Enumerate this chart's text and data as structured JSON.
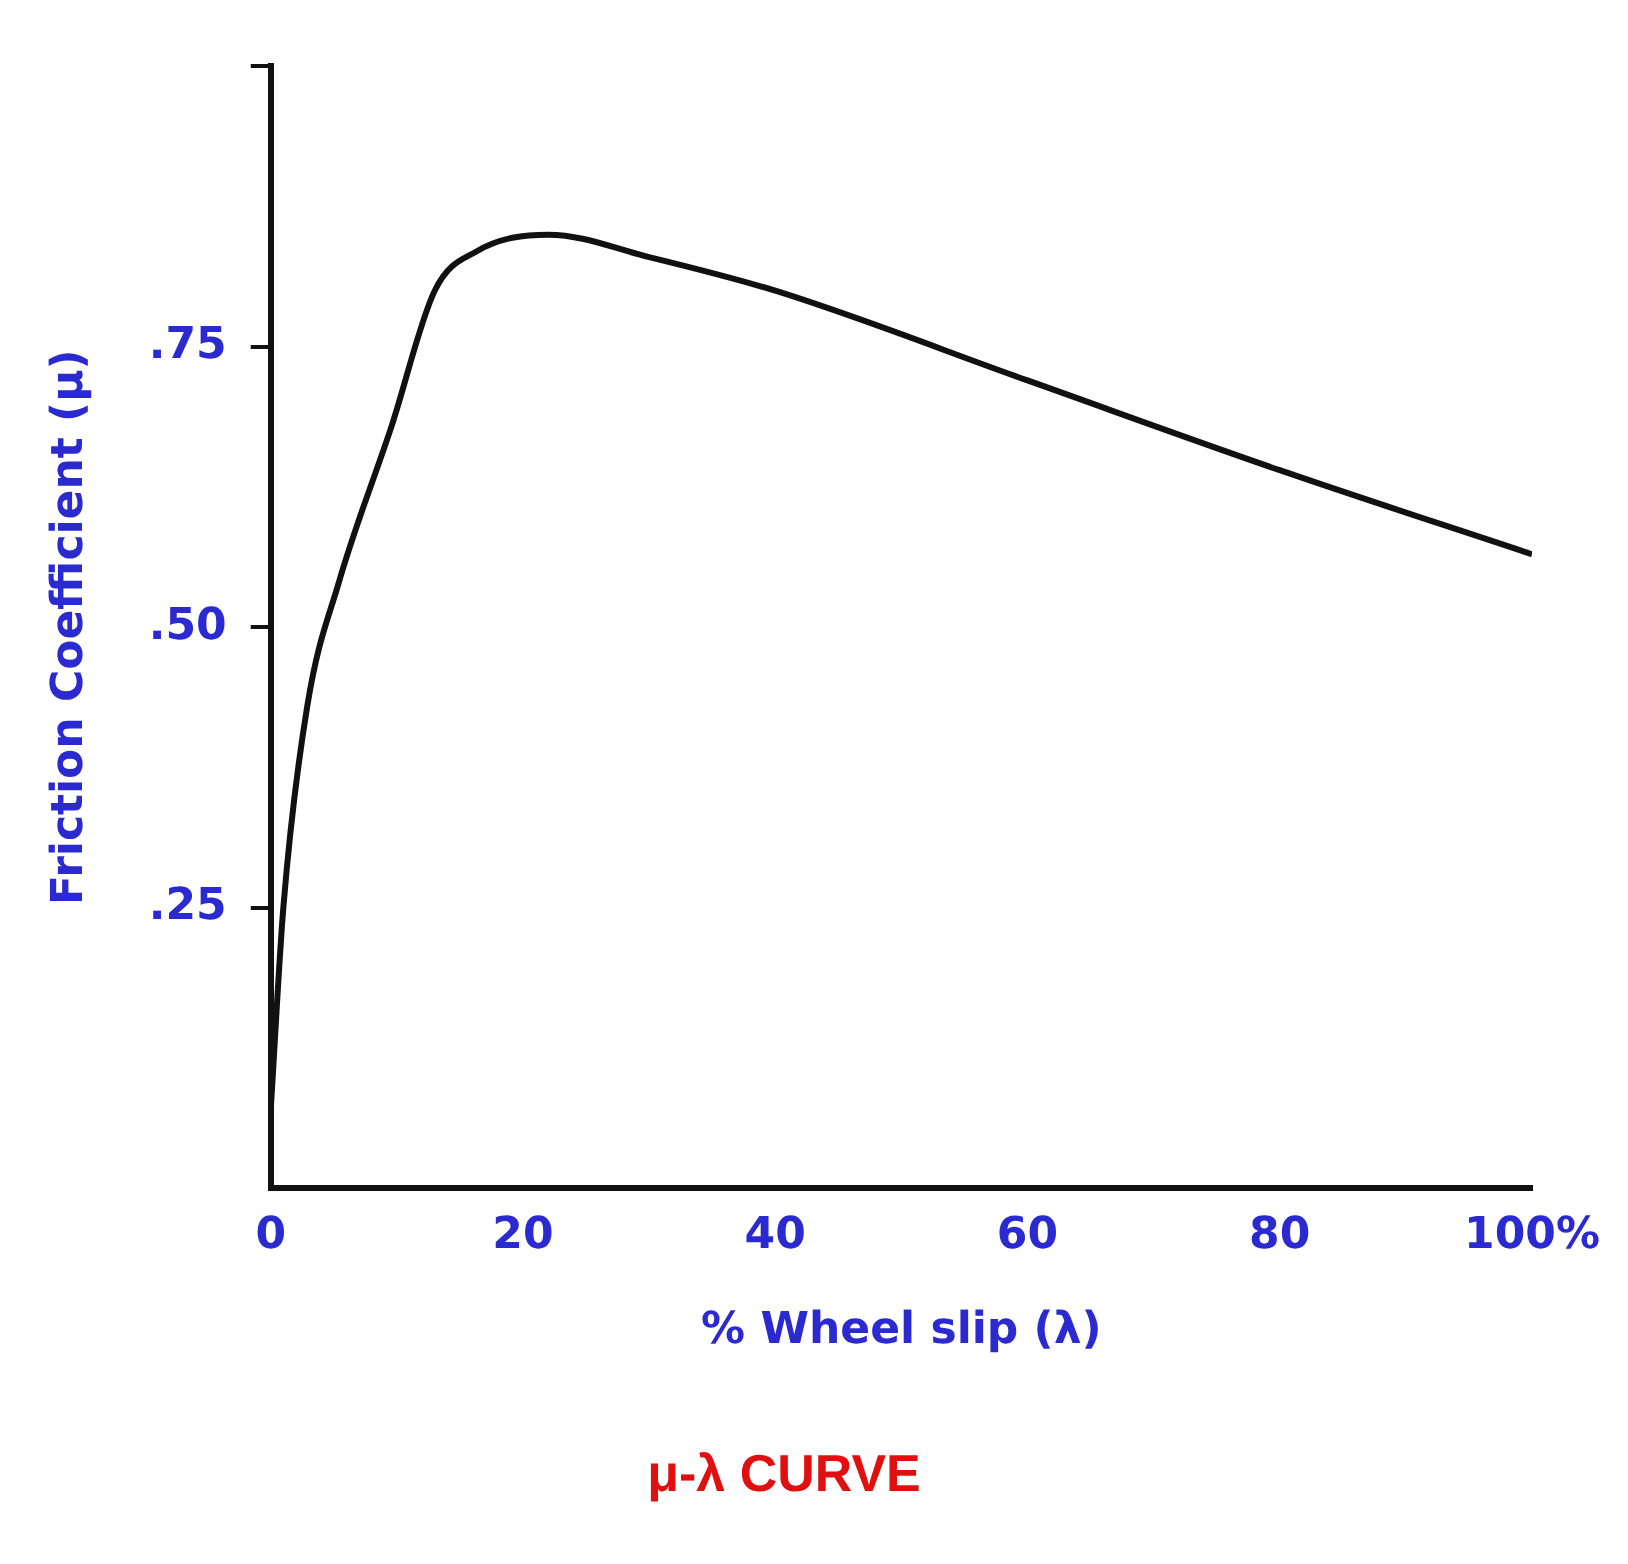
{
  "chart_data": {
    "type": "line",
    "title": "μ-λ CURVE",
    "xlabel": "% Wheel slip (λ)",
    "ylabel": "Friction Coefficient (μ)",
    "x": [
      0,
      1,
      2.9,
      5.4,
      9.6,
      13,
      16.3,
      22,
      30,
      40,
      60,
      80,
      100
    ],
    "series": [
      {
        "color": "#111111",
        "values": [
          0.07,
          0.25,
          0.43,
          0.54,
          0.68,
          0.8,
          0.835,
          0.85,
          0.83,
          0.8,
          0.72,
          0.64,
          0.565
        ]
      }
    ],
    "xlim": [
      0,
      100
    ],
    "ylim": [
      0,
      1
    ],
    "xticks": [
      0,
      20,
      40,
      60,
      80,
      {
        "value": 100,
        "label": "100%"
      }
    ],
    "yticks": [
      {
        "value": 0.25,
        "label": ".25"
      },
      {
        "value": 0.5,
        "label": ".50"
      },
      {
        "value": 0.75,
        "label": ".75"
      },
      {
        "value": 1,
        "label": null
      }
    ],
    "grid": false,
    "legend": false,
    "marker": "none",
    "line_style": "solid"
  }
}
